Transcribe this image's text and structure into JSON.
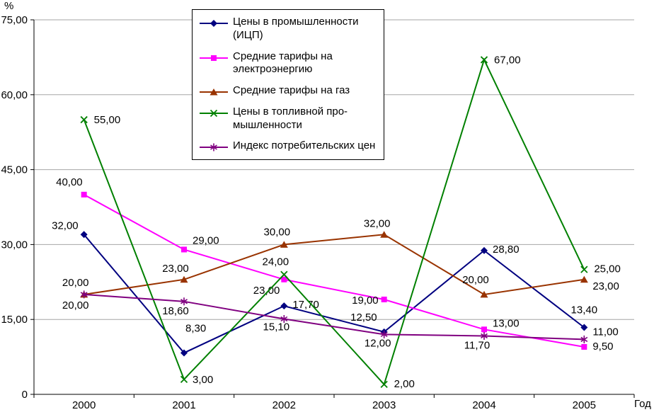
{
  "chart_data": {
    "type": "line",
    "title": "",
    "ylabel": "%",
    "xlabel": "Год",
    "x_labels": [
      "2000",
      "2001",
      "2002",
      "2003",
      "2004",
      "2005"
    ],
    "ylim": [
      0,
      75
    ],
    "ytick_values": [
      0,
      15,
      30,
      45,
      60,
      75
    ],
    "ytick_labels": [
      "0",
      "15,00",
      "30,00",
      "45,00",
      "60,00",
      "75,00"
    ],
    "grid": true,
    "legend_position": "top-center",
    "background_color": "#FFFFFF",
    "gridline_color": "#A6A6A6",
    "series": [
      {
        "name": "Цены в промышленности\n(ИЦП)",
        "marker": "diamond",
        "color": "#000080",
        "values": [
          32,
          8.3,
          17.7,
          12.5,
          28.8,
          13.4
        ],
        "labels": [
          "32,00",
          "8,30",
          "17,70",
          "12,50",
          "28,80",
          "13,40"
        ]
      },
      {
        "name": "Средние тарифы на\nэлектроэнергию",
        "marker": "square",
        "color": "#FF00FF",
        "values": [
          40,
          29,
          23,
          19,
          13,
          9.5
        ],
        "labels": [
          "40,00",
          "29,00",
          "23,00",
          "19,00",
          "13,00",
          "9,50"
        ]
      },
      {
        "name": "Средние тарифы на газ",
        "marker": "triangle",
        "color": "#993300",
        "values": [
          20,
          23,
          30,
          32,
          20,
          23
        ],
        "labels": [
          "20,00",
          "23,00",
          "30,00",
          "32,00",
          "20,00",
          "23,00"
        ]
      },
      {
        "name": "Цены в топливной про-\nмышленности",
        "marker": "x",
        "color": "#008000",
        "values": [
          55,
          3,
          24,
          2,
          67,
          25
        ],
        "labels": [
          "55,00",
          "3,00",
          "24,00",
          "2,00",
          "67,00",
          "25,00"
        ]
      },
      {
        "name": "Индекс потребительских цен",
        "marker": "asterisk",
        "color": "#800080",
        "values": [
          20,
          18.6,
          15.1,
          12,
          11.7,
          11
        ],
        "labels": [
          "20,00",
          "18,60",
          "15,10",
          "12,00",
          "11,70",
          "11,00"
        ]
      }
    ]
  }
}
